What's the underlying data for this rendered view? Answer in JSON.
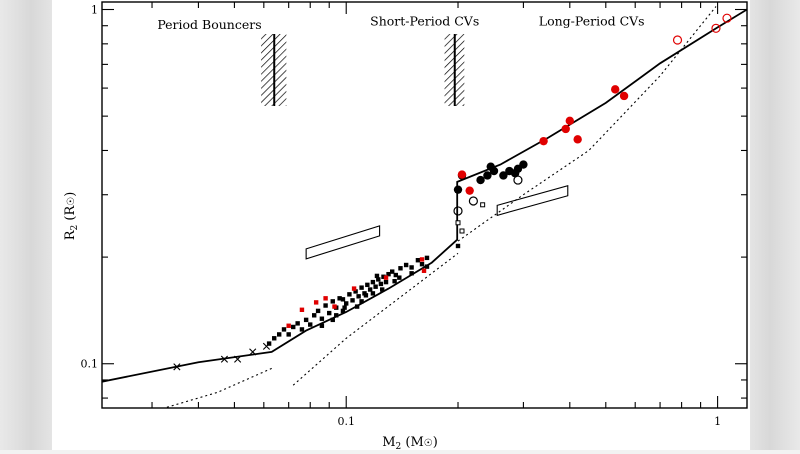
{
  "chart_data": {
    "type": "scatter",
    "xscale": "log",
    "yscale": "log",
    "xlim": [
      0.022,
      1.2
    ],
    "ylim": [
      0.075,
      1.05
    ],
    "xlabel_main": "M",
    "xlabel_sub": "2",
    "xlabel_unit": "(M",
    "xlabel_close": ")",
    "ylabel_main": "R",
    "ylabel_sub": "2",
    "ylabel_unit": "(R",
    "ylabel_close": ")",
    "xticks": [
      {
        "value": 0.1,
        "label": "0.1"
      },
      {
        "value": 1,
        "label": "1"
      }
    ],
    "yticks": [
      {
        "value": 0.1,
        "label": "0.1"
      },
      {
        "value": 1,
        "label": "1"
      }
    ],
    "regions": [
      {
        "label": "Period Bouncers",
        "x": 0.031,
        "y": 0.88
      },
      {
        "label": "Short-Period CVs",
        "x": 0.116,
        "y": 0.9
      },
      {
        "label": "Long-Period CVs",
        "x": 0.33,
        "y": 0.9
      }
    ],
    "hatched_bands": [
      {
        "xmin": 0.059,
        "xmax": 0.069,
        "center": 0.064
      },
      {
        "xmin": 0.184,
        "xmax": 0.208,
        "center": 0.196
      }
    ],
    "parallelograms": [
      {
        "x0": 0.078,
        "x1": 0.123,
        "y0": 0.211,
        "y1": 0.245
      },
      {
        "x0": 0.255,
        "x1": 0.395,
        "y0": 0.28,
        "y1": 0.318
      }
    ],
    "series": [
      {
        "name": "donor sequence (solid)",
        "style": "solid",
        "points": [
          [
            0.022,
            0.089
          ],
          [
            0.04,
            0.101
          ],
          [
            0.063,
            0.108
          ],
          [
            0.078,
            0.124
          ],
          [
            0.1,
            0.14
          ],
          [
            0.13,
            0.163
          ],
          [
            0.17,
            0.193
          ],
          [
            0.199,
            0.224
          ],
          [
            0.199,
            0.326
          ],
          [
            0.26,
            0.365
          ],
          [
            0.35,
            0.435
          ],
          [
            0.5,
            0.545
          ],
          [
            0.7,
            0.705
          ],
          [
            1.0,
            0.89
          ],
          [
            1.2,
            1.0
          ]
        ]
      },
      {
        "name": "ZAMS (dotted, upper)",
        "style": "dotted",
        "points": [
          [
            0.2,
            0.222
          ],
          [
            0.3,
            0.3
          ],
          [
            0.45,
            0.4
          ],
          [
            0.7,
            0.65
          ],
          [
            0.99,
            1.02
          ]
        ]
      },
      {
        "name": "ZAMS (dotted, lower)",
        "style": "dotted",
        "points": [
          [
            0.031,
            0.074
          ],
          [
            0.045,
            0.083
          ],
          [
            0.063,
            0.097
          ]
        ]
      },
      {
        "name": "model track (dotted)",
        "style": "dotted",
        "points": [
          [
            0.072,
            0.087
          ],
          [
            0.1,
            0.118
          ],
          [
            0.15,
            0.163
          ],
          [
            0.2,
            0.205
          ]
        ]
      },
      {
        "name": "period bouncers",
        "marker": "cross",
        "color": "#000000",
        "points": [
          [
            0.035,
            0.098
          ],
          [
            0.047,
            0.103
          ],
          [
            0.051,
            0.103
          ],
          [
            0.056,
            0.108
          ],
          [
            0.061,
            0.112
          ]
        ]
      },
      {
        "name": "short-period black",
        "marker": "square",
        "color": "#000000",
        "points": [
          [
            0.062,
            0.114
          ],
          [
            0.064,
            0.118
          ],
          [
            0.066,
            0.121
          ],
          [
            0.068,
            0.125
          ],
          [
            0.07,
            0.121
          ],
          [
            0.072,
            0.127
          ],
          [
            0.074,
            0.13
          ],
          [
            0.076,
            0.125
          ],
          [
            0.078,
            0.133
          ],
          [
            0.08,
            0.129
          ],
          [
            0.082,
            0.137
          ],
          [
            0.084,
            0.141
          ],
          [
            0.086,
            0.134
          ],
          [
            0.088,
            0.146
          ],
          [
            0.09,
            0.139
          ],
          [
            0.092,
            0.15
          ],
          [
            0.094,
            0.144
          ],
          [
            0.096,
            0.153
          ],
          [
            0.098,
            0.141
          ],
          [
            0.1,
            0.148
          ],
          [
            0.102,
            0.157
          ],
          [
            0.104,
            0.151
          ],
          [
            0.106,
            0.16
          ],
          [
            0.108,
            0.155
          ],
          [
            0.11,
            0.164
          ],
          [
            0.112,
            0.158
          ],
          [
            0.114,
            0.167
          ],
          [
            0.116,
            0.162
          ],
          [
            0.118,
            0.17
          ],
          [
            0.12,
            0.165
          ],
          [
            0.122,
            0.173
          ],
          [
            0.124,
            0.168
          ],
          [
            0.126,
            0.176
          ],
          [
            0.128,
            0.17
          ],
          [
            0.13,
            0.179
          ],
          [
            0.133,
            0.182
          ],
          [
            0.136,
            0.178
          ],
          [
            0.14,
            0.186
          ],
          [
            0.145,
            0.19
          ],
          [
            0.15,
            0.187
          ],
          [
            0.156,
            0.196
          ],
          [
            0.16,
            0.191
          ],
          [
            0.165,
            0.199
          ],
          [
            0.094,
            0.137
          ],
          [
            0.099,
            0.144
          ],
          [
            0.11,
            0.15
          ],
          [
            0.118,
            0.158
          ],
          [
            0.125,
            0.162
          ],
          [
            0.135,
            0.171
          ],
          [
            0.15,
            0.18
          ],
          [
            0.165,
            0.188
          ],
          [
            0.086,
            0.128
          ],
          [
            0.092,
            0.133
          ],
          [
            0.113,
            0.156
          ],
          [
            0.098,
            0.152
          ],
          [
            0.107,
            0.145
          ],
          [
            0.121,
            0.177
          ],
          [
            0.139,
            0.175
          ],
          [
            0.2,
            0.215
          ]
        ]
      },
      {
        "name": "short-period red",
        "marker": "square",
        "color": "#e00000",
        "points": [
          [
            0.07,
            0.128
          ],
          [
            0.076,
            0.142
          ],
          [
            0.083,
            0.149
          ],
          [
            0.088,
            0.153
          ],
          [
            0.093,
            0.145
          ],
          [
            0.105,
            0.163
          ],
          [
            0.128,
            0.175
          ],
          [
            0.16,
            0.197
          ],
          [
            0.162,
            0.183
          ]
        ]
      },
      {
        "name": "long-period black",
        "marker": "dot",
        "color": "#000000",
        "points": [
          [
            0.2,
            0.31
          ],
          [
            0.205,
            0.34
          ],
          [
            0.23,
            0.33
          ],
          [
            0.24,
            0.34
          ],
          [
            0.25,
            0.35
          ],
          [
            0.245,
            0.36
          ],
          [
            0.265,
            0.34
          ],
          [
            0.275,
            0.35
          ],
          [
            0.285,
            0.345
          ],
          [
            0.29,
            0.355
          ],
          [
            0.3,
            0.365
          ]
        ]
      },
      {
        "name": "long-period red",
        "marker": "dot",
        "color": "#e00000",
        "points": [
          [
            0.205,
            0.342
          ],
          [
            0.215,
            0.308
          ],
          [
            0.34,
            0.425
          ],
          [
            0.39,
            0.46
          ],
          [
            0.4,
            0.485
          ],
          [
            0.42,
            0.43
          ],
          [
            0.53,
            0.595
          ],
          [
            0.56,
            0.57
          ]
        ]
      },
      {
        "name": "open black circles",
        "marker": "open-circle",
        "color": "#000000",
        "points": [
          [
            0.2,
            0.27
          ],
          [
            0.22,
            0.288
          ],
          [
            0.29,
            0.33
          ]
        ]
      },
      {
        "name": "open black squares",
        "marker": "open-square",
        "color": "#000000",
        "points": [
          [
            0.2,
            0.25
          ],
          [
            0.205,
            0.237
          ],
          [
            0.233,
            0.281
          ]
        ]
      },
      {
        "name": "open red circles",
        "marker": "open-circle",
        "color": "#e00000",
        "points": [
          [
            0.78,
            0.82
          ],
          [
            0.99,
            0.885
          ],
          [
            1.06,
            0.945
          ]
        ]
      }
    ]
  }
}
